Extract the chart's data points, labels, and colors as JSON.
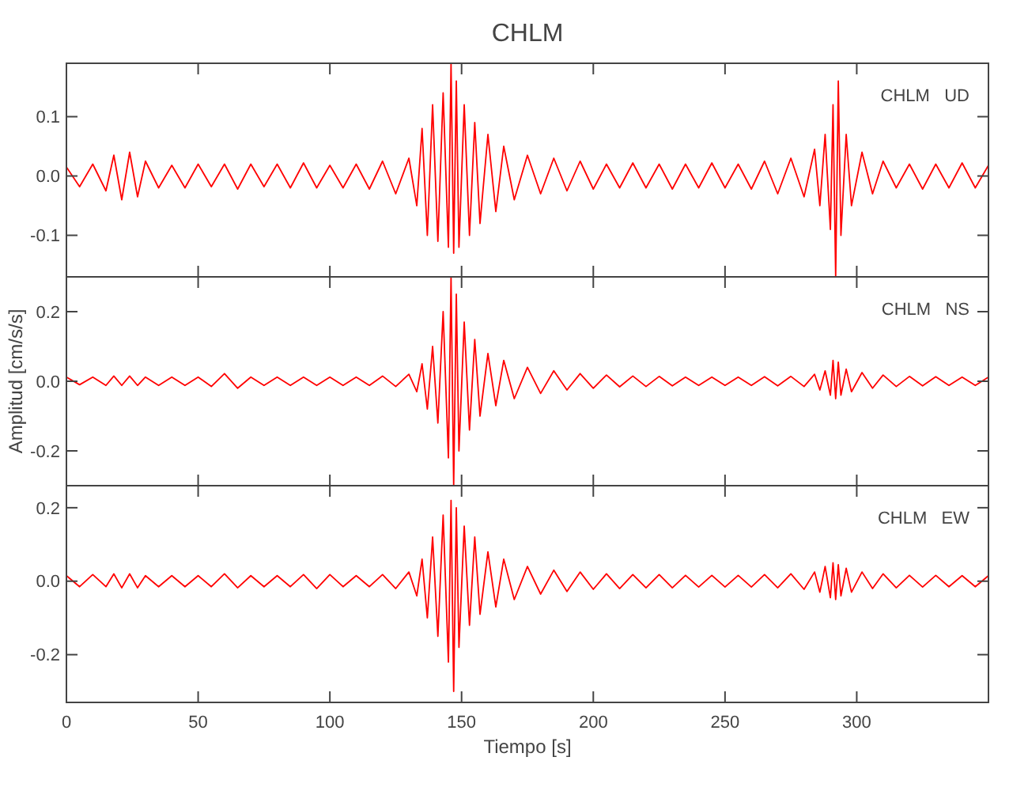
{
  "chart_data": [
    {
      "type": "line",
      "title": "CHLM",
      "annotations": [
        "CHLM   UD"
      ],
      "xlim": [
        0,
        350
      ],
      "xticks": [
        0,
        50,
        100,
        150,
        200,
        250,
        300
      ],
      "ylim": [
        -0.17,
        0.19
      ],
      "yticks": [
        {
          "value": -0.1,
          "label": "-0.1"
        },
        {
          "value": 0,
          "label": "0.0"
        },
        {
          "value": 0.1,
          "label": "0.1"
        }
      ],
      "tick_labels": "y",
      "x": [
        0,
        5,
        10,
        15,
        18,
        21,
        24,
        27,
        30,
        35,
        40,
        45,
        50,
        55,
        60,
        65,
        70,
        75,
        80,
        85,
        90,
        95,
        100,
        105,
        110,
        115,
        120,
        125,
        130,
        133,
        135,
        137,
        139,
        141,
        143,
        145,
        146,
        147,
        148,
        149,
        151,
        153,
        155,
        157,
        160,
        163,
        166,
        170,
        175,
        180,
        185,
        190,
        195,
        200,
        205,
        210,
        215,
        220,
        225,
        230,
        235,
        240,
        245,
        250,
        255,
        260,
        265,
        270,
        275,
        280,
        284,
        286,
        288,
        290,
        291,
        292,
        293,
        294,
        296,
        298,
        302,
        306,
        310,
        315,
        320,
        325,
        330,
        335,
        340,
        345,
        350
      ],
      "series": [
        {
          "color": "#ff0000",
          "values": [
            0.015,
            -0.018,
            0.02,
            -0.025,
            0.035,
            -0.04,
            0.04,
            -0.035,
            0.025,
            -0.02,
            0.018,
            -0.02,
            0.02,
            -0.018,
            0.02,
            -0.022,
            0.02,
            -0.018,
            0.02,
            -0.02,
            0.022,
            -0.02,
            0.018,
            -0.02,
            0.02,
            -0.022,
            0.025,
            -0.03,
            0.03,
            -0.05,
            0.08,
            -0.1,
            0.12,
            -0.11,
            0.14,
            -0.12,
            0.19,
            -0.13,
            0.16,
            -0.12,
            0.12,
            -0.1,
            0.09,
            -0.08,
            0.07,
            -0.06,
            0.05,
            -0.04,
            0.035,
            -0.03,
            0.03,
            -0.025,
            0.025,
            -0.022,
            0.02,
            -0.02,
            0.022,
            -0.02,
            0.02,
            -0.022,
            0.02,
            -0.02,
            0.022,
            -0.02,
            0.02,
            -0.022,
            0.025,
            -0.03,
            0.03,
            -0.035,
            0.045,
            -0.05,
            0.07,
            -0.09,
            0.12,
            -0.17,
            0.16,
            -0.1,
            0.07,
            -0.05,
            0.04,
            -0.03,
            0.025,
            -0.02,
            0.02,
            -0.022,
            0.02,
            -0.02,
            0.022,
            -0.02,
            0.018
          ]
        }
      ]
    },
    {
      "type": "line",
      "ylabel": "Amplitud [cm/s/s]",
      "annotations": [
        "CHLM   NS"
      ],
      "xlim": [
        0,
        350
      ],
      "xticks": [
        0,
        50,
        100,
        150,
        200,
        250,
        300
      ],
      "ylim": [
        -0.3,
        0.3
      ],
      "yticks": [
        {
          "value": -0.2,
          "label": "-0.2"
        },
        {
          "value": 0,
          "label": "0.0"
        },
        {
          "value": 0.2,
          "label": "0.2"
        }
      ],
      "tick_labels": "y",
      "x": [
        0,
        5,
        10,
        15,
        18,
        21,
        24,
        27,
        30,
        35,
        40,
        45,
        50,
        55,
        60,
        65,
        70,
        75,
        80,
        85,
        90,
        95,
        100,
        105,
        110,
        115,
        120,
        125,
        130,
        133,
        135,
        137,
        139,
        141,
        143,
        145,
        146,
        147,
        148,
        149,
        151,
        153,
        155,
        157,
        160,
        163,
        166,
        170,
        175,
        180,
        185,
        190,
        195,
        200,
        205,
        210,
        215,
        220,
        225,
        230,
        235,
        240,
        245,
        250,
        255,
        260,
        265,
        270,
        275,
        280,
        284,
        286,
        288,
        290,
        291,
        292,
        293,
        294,
        296,
        298,
        302,
        306,
        310,
        315,
        320,
        325,
        330,
        335,
        340,
        345,
        350
      ],
      "series": [
        {
          "color": "#ff0000",
          "values": [
            0.012,
            -0.01,
            0.012,
            -0.012,
            0.015,
            -0.012,
            0.015,
            -0.012,
            0.012,
            -0.012,
            0.012,
            -0.012,
            0.012,
            -0.015,
            0.022,
            -0.02,
            0.012,
            -0.012,
            0.012,
            -0.012,
            0.012,
            -0.012,
            0.012,
            -0.012,
            0.012,
            -0.012,
            0.015,
            -0.015,
            0.02,
            -0.03,
            0.05,
            -0.08,
            0.1,
            -0.12,
            0.2,
            -0.22,
            0.3,
            -0.3,
            0.25,
            -0.2,
            0.17,
            -0.14,
            0.12,
            -0.1,
            0.08,
            -0.07,
            0.06,
            -0.05,
            0.04,
            -0.035,
            0.03,
            -0.025,
            0.022,
            -0.02,
            0.018,
            -0.016,
            0.015,
            -0.015,
            0.014,
            -0.013,
            0.012,
            -0.012,
            0.012,
            -0.012,
            0.012,
            -0.012,
            0.013,
            -0.013,
            0.014,
            -0.015,
            0.02,
            -0.025,
            0.03,
            -0.04,
            0.06,
            -0.05,
            0.055,
            -0.04,
            0.035,
            -0.03,
            0.025,
            -0.02,
            0.018,
            -0.015,
            0.014,
            -0.013,
            0.013,
            -0.012,
            0.012,
            -0.012,
            0.012
          ]
        }
      ]
    },
    {
      "type": "line",
      "xlabel": "Tiempo [s]",
      "annotations": [
        "CHLM   EW"
      ],
      "xlim": [
        0,
        350
      ],
      "xticks": [
        0,
        50,
        100,
        150,
        200,
        250,
        300
      ],
      "ylim": [
        -0.33,
        0.26
      ],
      "yticks": [
        {
          "value": -0.2,
          "label": "-0.2"
        },
        {
          "value": 0,
          "label": "0.0"
        },
        {
          "value": 0.2,
          "label": "0.2"
        }
      ],
      "x": [
        0,
        5,
        10,
        15,
        18,
        21,
        24,
        27,
        30,
        35,
        40,
        45,
        50,
        55,
        60,
        65,
        70,
        75,
        80,
        85,
        90,
        95,
        100,
        105,
        110,
        115,
        120,
        125,
        130,
        133,
        135,
        137,
        139,
        141,
        143,
        145,
        146,
        147,
        148,
        149,
        151,
        153,
        155,
        157,
        160,
        163,
        166,
        170,
        175,
        180,
        185,
        190,
        195,
        200,
        205,
        210,
        215,
        220,
        225,
        230,
        235,
        240,
        245,
        250,
        255,
        260,
        265,
        270,
        275,
        280,
        284,
        286,
        288,
        290,
        291,
        292,
        293,
        294,
        296,
        298,
        302,
        306,
        310,
        315,
        320,
        325,
        330,
        335,
        340,
        345,
        350
      ],
      "series": [
        {
          "color": "#ff0000",
          "values": [
            0.015,
            -0.015,
            0.018,
            -0.015,
            0.02,
            -0.018,
            0.02,
            -0.018,
            0.015,
            -0.015,
            0.015,
            -0.015,
            0.015,
            -0.015,
            0.02,
            -0.018,
            0.015,
            -0.015,
            0.015,
            -0.015,
            0.018,
            -0.02,
            0.018,
            -0.015,
            0.015,
            -0.015,
            0.018,
            -0.02,
            0.025,
            -0.04,
            0.06,
            -0.1,
            0.12,
            -0.15,
            0.18,
            -0.22,
            0.22,
            -0.3,
            0.2,
            -0.18,
            0.15,
            -0.12,
            0.12,
            -0.09,
            0.08,
            -0.07,
            0.06,
            -0.05,
            0.04,
            -0.035,
            0.03,
            -0.028,
            0.025,
            -0.022,
            0.02,
            -0.02,
            0.018,
            -0.018,
            0.018,
            -0.018,
            0.016,
            -0.016,
            0.016,
            -0.016,
            0.016,
            -0.016,
            0.018,
            -0.018,
            0.02,
            -0.022,
            0.025,
            -0.03,
            0.04,
            -0.045,
            0.05,
            -0.05,
            0.045,
            -0.04,
            0.035,
            -0.03,
            0.025,
            -0.02,
            0.02,
            -0.018,
            0.016,
            -0.016,
            0.016,
            -0.015,
            0.015,
            -0.015,
            0.015
          ]
        }
      ]
    }
  ]
}
